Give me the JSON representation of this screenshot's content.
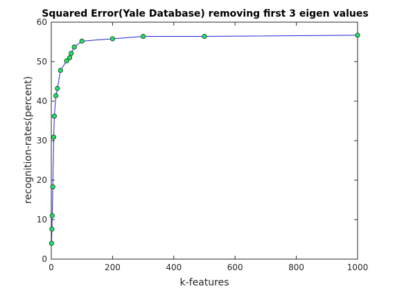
{
  "chart_data": {
    "type": "line",
    "title": "Squared Error(Yale Database) removing first 3 eigen values",
    "xlabel": "k-features",
    "ylabel": "recognition-rates(percent)",
    "xlim": [
      0,
      1000
    ],
    "ylim": [
      0,
      60
    ],
    "xticks": [
      0,
      200,
      400,
      600,
      800,
      1000
    ],
    "yticks": [
      0,
      10,
      20,
      30,
      40,
      50,
      60
    ],
    "grid": false,
    "legend": false,
    "line_color": "#1f1fd6",
    "marker_face_color": "#22dd66",
    "marker_edge_color": "#1a3a1a",
    "series": [
      {
        "x": [
          1,
          2,
          3,
          5,
          8,
          10,
          15,
          20,
          30,
          50,
          60,
          65,
          75,
          100,
          200,
          300,
          500,
          1000
        ],
        "y": [
          4.0,
          7.6,
          11.0,
          18.3,
          30.9,
          36.2,
          41.4,
          43.2,
          47.8,
          50.2,
          51.0,
          52.1,
          53.7,
          55.2,
          55.8,
          56.4,
          56.4,
          56.7
        ]
      }
    ]
  }
}
